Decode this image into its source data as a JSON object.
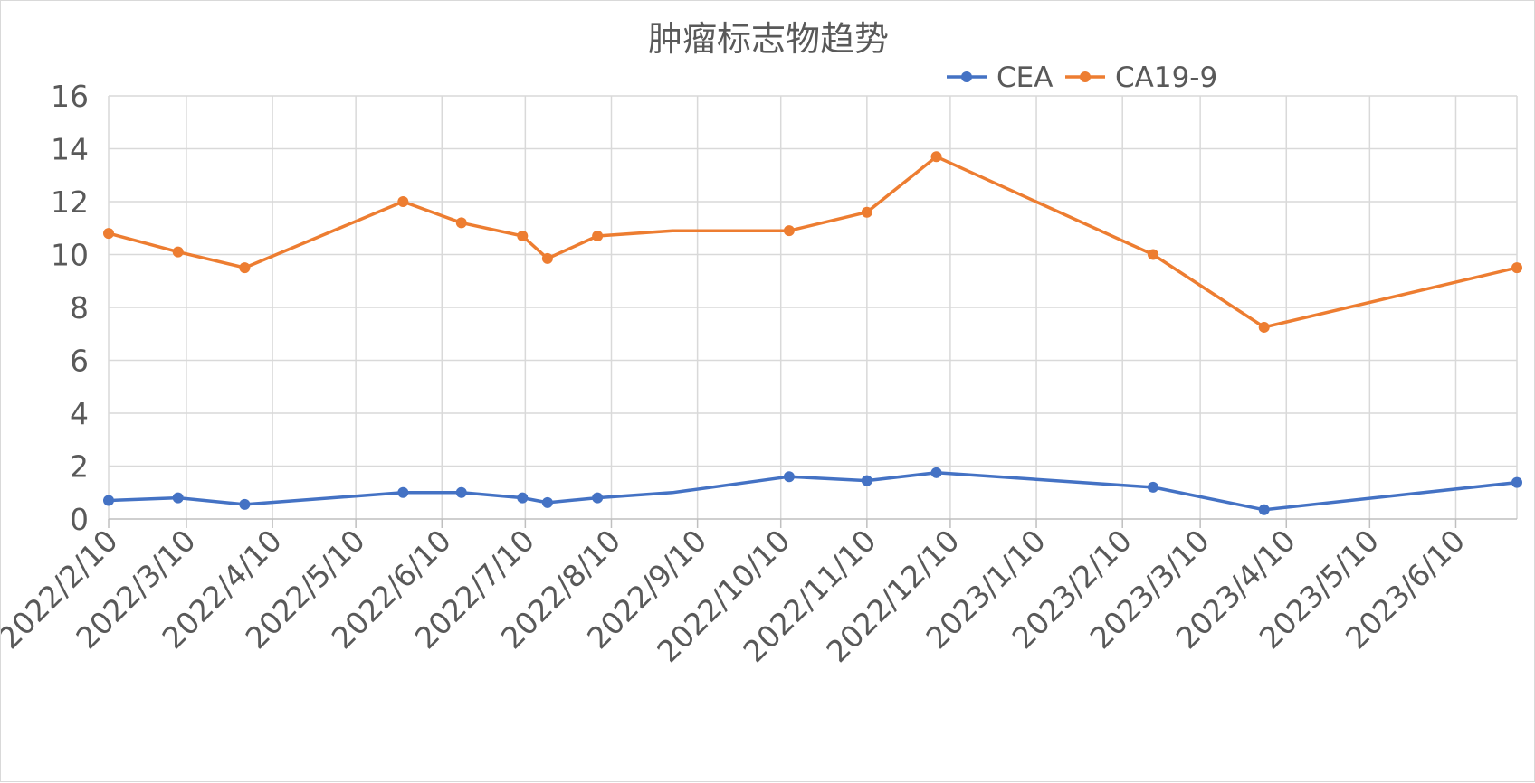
{
  "chart_data": {
    "type": "line",
    "title": "肿瘤标志物趋势",
    "xlabel": "",
    "ylabel": "",
    "ylim": [
      0,
      16
    ],
    "yticks": [
      0,
      2,
      4,
      6,
      8,
      10,
      12,
      14,
      16
    ],
    "xlim": [
      "2022-02-10",
      "2023-07-02"
    ],
    "xtick_dates": [
      "2022-02-10",
      "2022-03-10",
      "2022-04-10",
      "2022-05-10",
      "2022-06-10",
      "2022-07-10",
      "2022-08-10",
      "2022-09-10",
      "2022-10-10",
      "2022-11-10",
      "2022-12-10",
      "2023-01-10",
      "2023-02-10",
      "2023-03-10",
      "2023-04-10",
      "2023-05-10",
      "2023-06-10"
    ],
    "xtick_labels": [
      "2022/2/10",
      "2022/3/10",
      "2022/4/10",
      "2022/5/10",
      "2022/6/10",
      "2022/7/10",
      "2022/8/10",
      "2022/9/10",
      "2022/10/10",
      "2022/11/10",
      "2022/12/10",
      "2023/1/10",
      "2023/2/10",
      "2023/3/10",
      "2023/4/10",
      "2023/5/10",
      "2023/6/10"
    ],
    "grid": true,
    "legend_position": "top",
    "series": [
      {
        "name": "CEA",
        "color": "#4472c4",
        "points": [
          {
            "x": "2022-02-10",
            "y": 0.7,
            "marker": true
          },
          {
            "x": "2022-03-07",
            "y": 0.8,
            "marker": true
          },
          {
            "x": "2022-03-31",
            "y": 0.55,
            "marker": true
          },
          {
            "x": "2022-05-27",
            "y": 1.0,
            "marker": true
          },
          {
            "x": "2022-06-17",
            "y": 1.0,
            "marker": true
          },
          {
            "x": "2022-07-09",
            "y": 0.8,
            "marker": true
          },
          {
            "x": "2022-07-18",
            "y": 0.62,
            "marker": true
          },
          {
            "x": "2022-08-05",
            "y": 0.8,
            "marker": true
          },
          {
            "x": "2022-09-01",
            "y": 1.0,
            "marker": false
          },
          {
            "x": "2022-10-13",
            "y": 1.6,
            "marker": true
          },
          {
            "x": "2022-11-10",
            "y": 1.45,
            "marker": true
          },
          {
            "x": "2022-12-05",
            "y": 1.75,
            "marker": true
          },
          {
            "x": "2023-02-21",
            "y": 1.2,
            "marker": true
          },
          {
            "x": "2023-04-02",
            "y": 0.35,
            "marker": true
          },
          {
            "x": "2023-07-02",
            "y": 1.38,
            "marker": true
          }
        ]
      },
      {
        "name": "CA19-9",
        "color": "#ed7d31",
        "points": [
          {
            "x": "2022-02-10",
            "y": 10.8,
            "marker": true
          },
          {
            "x": "2022-03-07",
            "y": 10.1,
            "marker": true
          },
          {
            "x": "2022-03-31",
            "y": 9.5,
            "marker": true
          },
          {
            "x": "2022-05-27",
            "y": 12.0,
            "marker": true
          },
          {
            "x": "2022-06-17",
            "y": 11.2,
            "marker": true
          },
          {
            "x": "2022-07-09",
            "y": 10.7,
            "marker": true
          },
          {
            "x": "2022-07-18",
            "y": 9.85,
            "marker": true
          },
          {
            "x": "2022-08-05",
            "y": 10.7,
            "marker": true
          },
          {
            "x": "2022-09-01",
            "y": 10.9,
            "marker": false
          },
          {
            "x": "2022-10-13",
            "y": 10.9,
            "marker": true
          },
          {
            "x": "2022-11-10",
            "y": 11.6,
            "marker": true
          },
          {
            "x": "2022-12-05",
            "y": 13.7,
            "marker": true
          },
          {
            "x": "2023-02-21",
            "y": 10.0,
            "marker": true
          },
          {
            "x": "2023-04-02",
            "y": 7.25,
            "marker": true
          },
          {
            "x": "2023-07-02",
            "y": 9.5,
            "marker": true
          }
        ]
      }
    ]
  }
}
